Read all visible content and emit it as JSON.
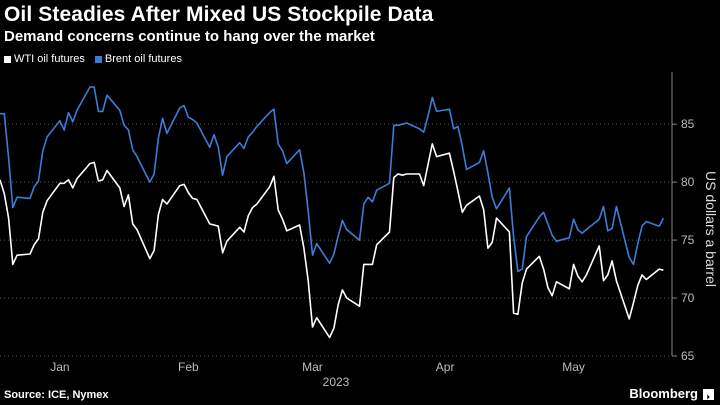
{
  "header": {
    "title": "Oil Steadies After Mixed US Stockpile Data",
    "subtitle": "Demand concerns continue to hang over the market"
  },
  "footer": {
    "source": "Source: ICE, Nymex",
    "brand": "Bloomberg"
  },
  "colors": {
    "background": "#000000",
    "wti": "#ffffff",
    "brent": "#3b7dd8",
    "grid": "#5a5a5a"
  },
  "chart_data": {
    "type": "line",
    "title": "Oil Steadies After Mixed US Stockpile Data",
    "subtitle": "Demand concerns continue to hang over the market",
    "xlabel": "2023",
    "ylabel": "US dollars a barrel",
    "ylim": [
      65,
      89.5
    ],
    "yticks": [
      65,
      70,
      75,
      80,
      85
    ],
    "y_axis_side": "right",
    "grid": "horizontal dotted",
    "legend_position": "top-left",
    "x_ticks": [
      {
        "label": "Jan",
        "date": "2023-01-15"
      },
      {
        "label": "Feb",
        "date": "2023-02-14"
      },
      {
        "label": "Mar",
        "date": "2023-03-15"
      },
      {
        "label": "Apr",
        "date": "2023-04-15"
      },
      {
        "label": "May",
        "date": "2023-05-15"
      }
    ],
    "series": [
      {
        "name": "WTI oil futures",
        "color": "#ffffff",
        "points": [
          [
            "2023-01-01",
            80.2
          ],
          [
            "2023-01-02",
            79.0
          ],
          [
            "2023-01-03",
            76.9
          ],
          [
            "2023-01-04",
            72.9
          ],
          [
            "2023-01-05",
            73.7
          ],
          [
            "2023-01-08",
            73.8
          ],
          [
            "2023-01-09",
            74.6
          ],
          [
            "2023-01-10",
            75.1
          ],
          [
            "2023-01-11",
            77.4
          ],
          [
            "2023-01-12",
            78.4
          ],
          [
            "2023-01-15",
            79.9
          ],
          [
            "2023-01-16",
            79.9
          ],
          [
            "2023-01-17",
            80.2
          ],
          [
            "2023-01-18",
            79.5
          ],
          [
            "2023-01-19",
            80.3
          ],
          [
            "2023-01-22",
            81.6
          ],
          [
            "2023-01-23",
            81.7
          ],
          [
            "2023-01-24",
            80.1
          ],
          [
            "2023-01-25",
            80.2
          ],
          [
            "2023-01-26",
            81.0
          ],
          [
            "2023-01-29",
            79.5
          ],
          [
            "2023-01-30",
            77.9
          ],
          [
            "2023-01-31",
            78.9
          ],
          [
            "2023-02-01",
            76.4
          ],
          [
            "2023-02-02",
            75.9
          ],
          [
            "2023-02-05",
            73.4
          ],
          [
            "2023-02-06",
            74.1
          ],
          [
            "2023-02-07",
            77.2
          ],
          [
            "2023-02-08",
            78.5
          ],
          [
            "2023-02-09",
            78.1
          ],
          [
            "2023-02-12",
            79.7
          ],
          [
            "2023-02-13",
            79.8
          ],
          [
            "2023-02-14",
            79.1
          ],
          [
            "2023-02-15",
            78.6
          ],
          [
            "2023-02-16",
            78.5
          ],
          [
            "2023-02-19",
            76.4
          ],
          [
            "2023-02-20",
            76.3
          ],
          [
            "2023-02-21",
            76.2
          ],
          [
            "2023-02-22",
            73.9
          ],
          [
            "2023-02-23",
            74.9
          ],
          [
            "2023-02-26",
            76.1
          ],
          [
            "2023-02-27",
            75.7
          ],
          [
            "2023-02-28",
            77.1
          ],
          [
            "2023-03-01",
            77.8
          ],
          [
            "2023-03-02",
            78.1
          ],
          [
            "2023-03-05",
            79.6
          ],
          [
            "2023-03-06",
            80.5
          ],
          [
            "2023-03-07",
            77.6
          ],
          [
            "2023-03-08",
            76.8
          ],
          [
            "2023-03-09",
            75.8
          ],
          [
            "2023-03-12",
            76.3
          ],
          [
            "2023-03-13",
            74.3
          ],
          [
            "2023-03-14",
            71.5
          ],
          [
            "2023-03-15",
            67.5
          ],
          [
            "2023-03-16",
            68.3
          ],
          [
            "2023-03-19",
            66.6
          ],
          [
            "2023-03-20",
            67.4
          ],
          [
            "2023-03-21",
            69.4
          ],
          [
            "2023-03-22",
            70.7
          ],
          [
            "2023-03-23",
            70.0
          ],
          [
            "2023-03-26",
            69.3
          ],
          [
            "2023-03-27",
            72.9
          ],
          [
            "2023-03-28",
            72.9
          ],
          [
            "2023-03-29",
            72.9
          ],
          [
            "2023-03-30",
            74.6
          ],
          [
            "2023-04-02",
            75.7
          ],
          [
            "2023-04-03",
            80.4
          ],
          [
            "2023-04-04",
            80.7
          ],
          [
            "2023-04-05",
            80.6
          ],
          [
            "2023-04-06",
            80.7
          ],
          [
            "2023-04-09",
            80.7
          ],
          [
            "2023-04-10",
            79.7
          ],
          [
            "2023-04-11",
            81.5
          ],
          [
            "2023-04-12",
            83.3
          ],
          [
            "2023-04-13",
            82.2
          ],
          [
            "2023-04-16",
            82.5
          ],
          [
            "2023-04-17",
            80.9
          ],
          [
            "2023-04-18",
            79.2
          ],
          [
            "2023-04-19",
            77.4
          ],
          [
            "2023-04-20",
            78.0
          ],
          [
            "2023-04-23",
            78.8
          ],
          [
            "2023-04-24",
            77.6
          ],
          [
            "2023-04-25",
            74.3
          ],
          [
            "2023-04-26",
            74.8
          ],
          [
            "2023-04-27",
            76.9
          ],
          [
            "2023-04-30",
            75.7
          ],
          [
            "2023-05-01",
            68.7
          ],
          [
            "2023-05-02",
            68.6
          ],
          [
            "2023-05-03",
            71.3
          ],
          [
            "2023-05-04",
            72.5
          ],
          [
            "2023-05-07",
            73.6
          ],
          [
            "2023-05-08",
            72.5
          ],
          [
            "2023-05-09",
            70.9
          ],
          [
            "2023-05-10",
            70.2
          ],
          [
            "2023-05-11",
            71.4
          ],
          [
            "2023-05-14",
            70.8
          ],
          [
            "2023-05-15",
            72.9
          ],
          [
            "2023-05-16",
            71.9
          ],
          [
            "2023-05-17",
            71.4
          ],
          [
            "2023-05-18",
            72.0
          ],
          [
            "2023-05-21",
            74.5
          ],
          [
            "2023-05-22",
            71.5
          ],
          [
            "2023-05-23",
            72.0
          ],
          [
            "2023-05-24",
            73.2
          ],
          [
            "2023-05-25",
            71.5
          ],
          [
            "2023-05-28",
            68.2
          ],
          [
            "2023-05-29",
            69.6
          ],
          [
            "2023-05-30",
            71.1
          ],
          [
            "2023-05-31",
            72.0
          ],
          [
            "2023-06-01",
            71.6
          ],
          [
            "2023-06-04",
            72.5
          ],
          [
            "2023-06-05",
            72.4
          ]
        ]
      },
      {
        "name": "Brent oil futures",
        "color": "#3b7dd8",
        "points": [
          [
            "2023-01-01",
            85.9
          ],
          [
            "2023-01-02",
            85.9
          ],
          [
            "2023-01-03",
            82.1
          ],
          [
            "2023-01-04",
            77.8
          ],
          [
            "2023-01-05",
            78.7
          ],
          [
            "2023-01-08",
            78.6
          ],
          [
            "2023-01-09",
            79.6
          ],
          [
            "2023-01-10",
            80.1
          ],
          [
            "2023-01-11",
            82.7
          ],
          [
            "2023-01-12",
            83.9
          ],
          [
            "2023-01-15",
            85.3
          ],
          [
            "2023-01-16",
            84.5
          ],
          [
            "2023-01-17",
            86.0
          ],
          [
            "2023-01-18",
            85.2
          ],
          [
            "2023-01-19",
            86.2
          ],
          [
            "2023-01-22",
            88.2
          ],
          [
            "2023-01-23",
            88.2
          ],
          [
            "2023-01-24",
            86.1
          ],
          [
            "2023-01-25",
            86.1
          ],
          [
            "2023-01-26",
            87.5
          ],
          [
            "2023-01-29",
            86.2
          ],
          [
            "2023-01-30",
            84.9
          ],
          [
            "2023-01-31",
            84.5
          ],
          [
            "2023-02-01",
            82.8
          ],
          [
            "2023-02-02",
            82.2
          ],
          [
            "2023-02-05",
            80.0
          ],
          [
            "2023-02-06",
            80.7
          ],
          [
            "2023-02-07",
            83.8
          ],
          [
            "2023-02-08",
            85.5
          ],
          [
            "2023-02-09",
            84.2
          ],
          [
            "2023-02-12",
            86.4
          ],
          [
            "2023-02-13",
            86.6
          ],
          [
            "2023-02-14",
            85.6
          ],
          [
            "2023-02-15",
            85.4
          ],
          [
            "2023-02-16",
            85.1
          ],
          [
            "2023-02-19",
            83.0
          ],
          [
            "2023-02-20",
            84.1
          ],
          [
            "2023-02-21",
            83.0
          ],
          [
            "2023-02-22",
            80.6
          ],
          [
            "2023-02-23",
            82.2
          ],
          [
            "2023-02-26",
            83.4
          ],
          [
            "2023-02-27",
            82.9
          ],
          [
            "2023-02-28",
            83.9
          ],
          [
            "2023-03-01",
            84.3
          ],
          [
            "2023-03-02",
            84.8
          ],
          [
            "2023-03-05",
            86.0
          ],
          [
            "2023-03-06",
            86.3
          ],
          [
            "2023-03-07",
            83.3
          ],
          [
            "2023-03-08",
            82.7
          ],
          [
            "2023-03-09",
            81.6
          ],
          [
            "2023-03-12",
            82.8
          ],
          [
            "2023-03-13",
            80.8
          ],
          [
            "2023-03-14",
            77.5
          ],
          [
            "2023-03-15",
            73.7
          ],
          [
            "2023-03-16",
            74.7
          ],
          [
            "2023-03-19",
            73.0
          ],
          [
            "2023-03-20",
            73.8
          ],
          [
            "2023-03-21",
            75.3
          ],
          [
            "2023-03-22",
            76.7
          ],
          [
            "2023-03-23",
            75.9
          ],
          [
            "2023-03-26",
            75.0
          ],
          [
            "2023-03-27",
            78.1
          ],
          [
            "2023-03-28",
            78.7
          ],
          [
            "2023-03-29",
            78.3
          ],
          [
            "2023-03-30",
            79.3
          ],
          [
            "2023-04-02",
            79.9
          ],
          [
            "2023-04-03",
            84.9
          ],
          [
            "2023-04-04",
            84.9
          ],
          [
            "2023-04-05",
            85.0
          ],
          [
            "2023-04-06",
            85.1
          ],
          [
            "2023-04-09",
            84.6
          ],
          [
            "2023-04-10",
            84.3
          ],
          [
            "2023-04-11",
            85.7
          ],
          [
            "2023-04-12",
            87.3
          ],
          [
            "2023-04-13",
            86.1
          ],
          [
            "2023-04-16",
            86.3
          ],
          [
            "2023-04-17",
            84.6
          ],
          [
            "2023-04-18",
            84.8
          ],
          [
            "2023-04-19",
            83.1
          ],
          [
            "2023-04-20",
            81.1
          ],
          [
            "2023-04-23",
            81.7
          ],
          [
            "2023-04-24",
            82.7
          ],
          [
            "2023-04-25",
            80.8
          ],
          [
            "2023-04-26",
            78.7
          ],
          [
            "2023-04-27",
            77.7
          ],
          [
            "2023-04-30",
            79.5
          ],
          [
            "2023-05-01",
            75.3
          ],
          [
            "2023-05-02",
            72.3
          ],
          [
            "2023-05-03",
            72.5
          ],
          [
            "2023-05-04",
            75.3
          ],
          [
            "2023-05-07",
            77.0
          ],
          [
            "2023-05-08",
            77.4
          ],
          [
            "2023-05-09",
            76.4
          ],
          [
            "2023-05-10",
            75.4
          ],
          [
            "2023-05-11",
            74.9
          ],
          [
            "2023-05-14",
            75.2
          ],
          [
            "2023-05-15",
            76.8
          ],
          [
            "2023-05-16",
            75.9
          ],
          [
            "2023-05-17",
            75.6
          ],
          [
            "2023-05-18",
            75.9
          ],
          [
            "2023-05-21",
            76.8
          ],
          [
            "2023-05-22",
            77.9
          ],
          [
            "2023-05-23",
            75.8
          ],
          [
            "2023-05-24",
            76.0
          ],
          [
            "2023-05-25",
            77.9
          ],
          [
            "2023-05-28",
            73.5
          ],
          [
            "2023-05-29",
            72.9
          ],
          [
            "2023-05-30",
            74.7
          ],
          [
            "2023-05-31",
            76.2
          ],
          [
            "2023-06-01",
            76.6
          ],
          [
            "2023-06-04",
            76.2
          ],
          [
            "2023-06-05",
            76.9
          ]
        ]
      }
    ]
  }
}
